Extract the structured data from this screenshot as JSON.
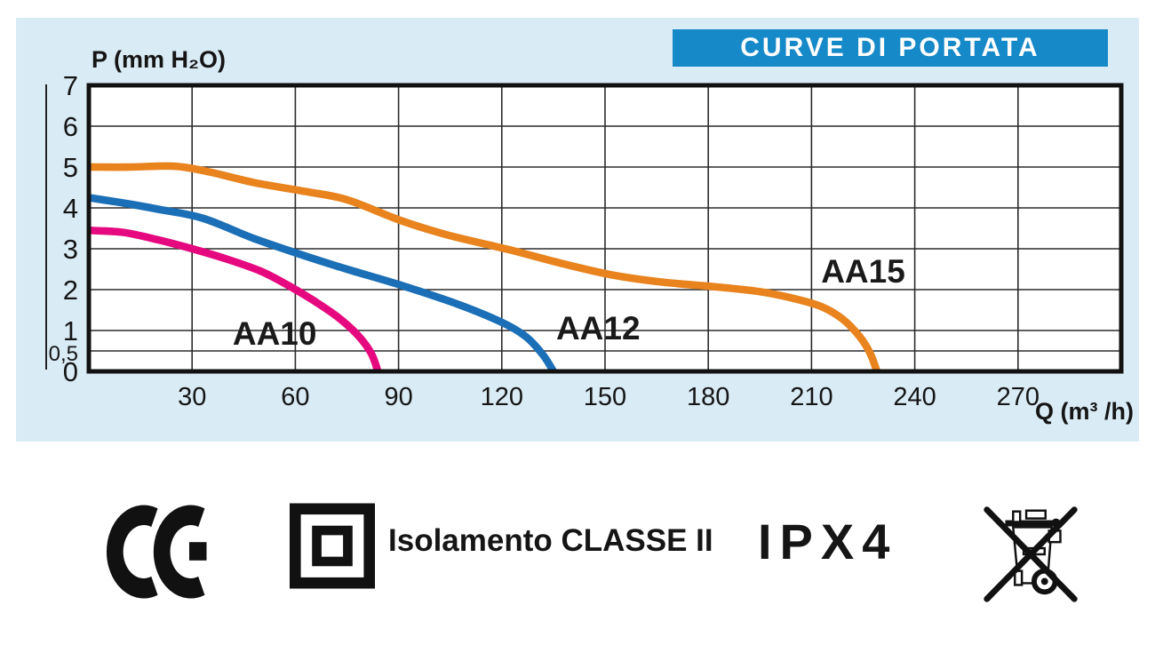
{
  "title_bar": {
    "label": "CURVE DI PORTATA",
    "background": "#1689c8",
    "text_color": "#ffffff"
  },
  "panel": {
    "background": "#d9ebf5"
  },
  "chart_data": {
    "type": "line",
    "title": "CURVE DI PORTATA",
    "xlabel": "Q (m³ /h)",
    "ylabel": "P (mm H₂O)",
    "xlim": [
      0,
      300
    ],
    "ylim": [
      0,
      7
    ],
    "grid": true,
    "legend_position": "inline-labels",
    "x_tick_values": [
      30,
      60,
      90,
      120,
      150,
      180,
      210,
      240,
      270
    ],
    "x_tick_labels": [
      "30",
      "60",
      "90",
      "120",
      "150",
      "180",
      "210",
      "240",
      "270"
    ],
    "y_tick_values": [
      7,
      6,
      5,
      4,
      3,
      2,
      1,
      0.5,
      0
    ],
    "y_tick_labels": [
      "7",
      "6",
      "5",
      "4",
      "3",
      "2",
      "1",
      "0,5",
      "0"
    ],
    "y_grid_values": [
      6,
      5,
      4,
      3,
      2,
      1,
      0.5
    ],
    "ink_color": "#111111",
    "grid_color": "#2b2b2b",
    "series": [
      {
        "name": "AA10",
        "color": "#e5087e",
        "label_pos": {
          "q": 54,
          "p": 0.93
        },
        "points": [
          [
            0,
            3.45
          ],
          [
            10,
            3.4
          ],
          [
            20,
            3.22
          ],
          [
            30,
            3.0
          ],
          [
            40,
            2.75
          ],
          [
            50,
            2.45
          ],
          [
            58,
            2.1
          ],
          [
            65,
            1.75
          ],
          [
            72,
            1.35
          ],
          [
            78,
            0.9
          ],
          [
            82,
            0.45
          ],
          [
            84,
            0
          ]
        ]
      },
      {
        "name": "AA12",
        "color": "#1b6fb6",
        "label_pos": {
          "q": 148,
          "p": 1.07
        },
        "points": [
          [
            0,
            4.25
          ],
          [
            10,
            4.12
          ],
          [
            20,
            3.97
          ],
          [
            33,
            3.75
          ],
          [
            48,
            3.25
          ],
          [
            63,
            2.82
          ],
          [
            75,
            2.5
          ],
          [
            91,
            2.1
          ],
          [
            107,
            1.65
          ],
          [
            120,
            1.2
          ],
          [
            127,
            0.85
          ],
          [
            132,
            0.4
          ],
          [
            135,
            0
          ]
        ]
      },
      {
        "name": "AA15",
        "color": "#e8831d",
        "label_pos": {
          "q": 225,
          "p": 2.46
        },
        "points": [
          [
            0,
            5.0
          ],
          [
            12,
            5.0
          ],
          [
            25,
            5.02
          ],
          [
            35,
            4.88
          ],
          [
            48,
            4.62
          ],
          [
            63,
            4.4
          ],
          [
            75,
            4.2
          ],
          [
            91,
            3.68
          ],
          [
            105,
            3.32
          ],
          [
            122,
            2.98
          ],
          [
            137,
            2.65
          ],
          [
            152,
            2.36
          ],
          [
            167,
            2.18
          ],
          [
            182,
            2.07
          ],
          [
            195,
            1.95
          ],
          [
            205,
            1.78
          ],
          [
            213,
            1.58
          ],
          [
            219,
            1.28
          ],
          [
            224,
            0.85
          ],
          [
            227,
            0.45
          ],
          [
            229,
            0
          ]
        ]
      }
    ]
  },
  "footer": {
    "insulation_label": "Isolamento CLASSE II",
    "ip_rating": "IPX4",
    "icons": [
      "ce-mark-icon",
      "double-insulation-icon",
      "weee-crossed-bin-icon"
    ]
  }
}
